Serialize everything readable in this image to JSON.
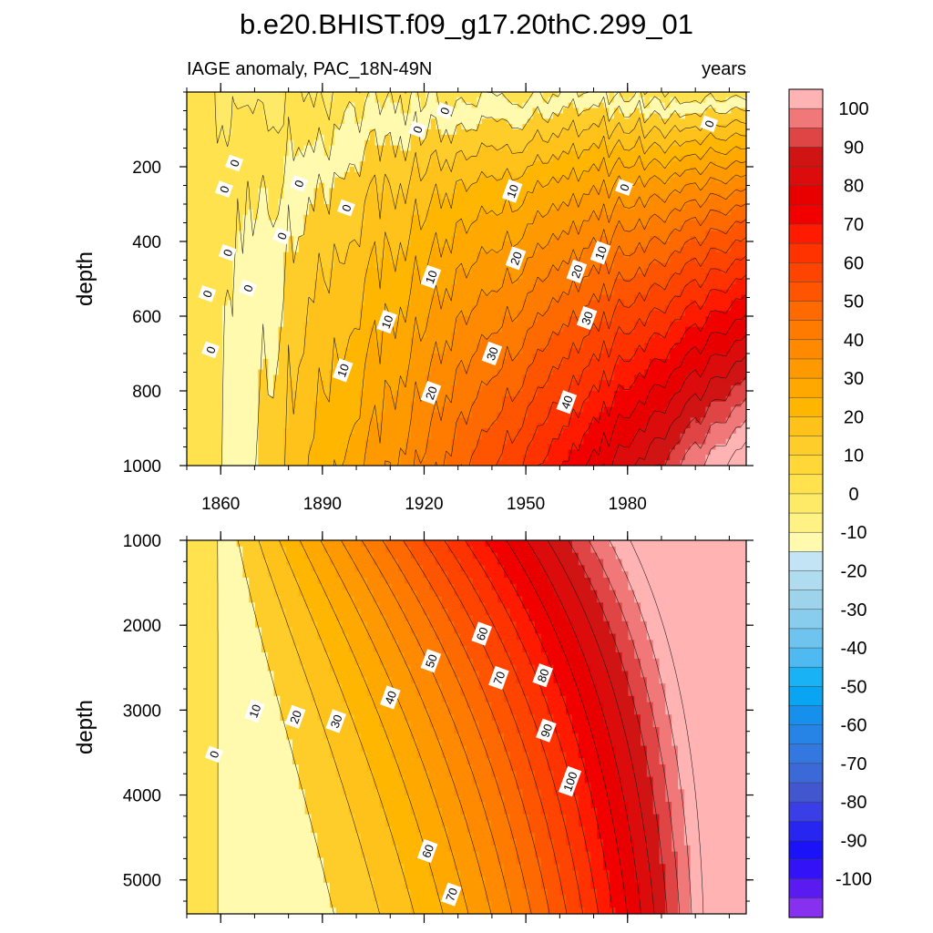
{
  "figure": {
    "title": "b.e20.BHIST.f09_g17.20thC.299_01",
    "subtitle_left": "IAGE anomaly, PAC_18N-49N",
    "subtitle_right": "years"
  },
  "chart_data": [
    {
      "type": "heatmap",
      "panel": "upper",
      "title": "IAGE anomaly, PAC_18N-49N",
      "units": "years",
      "xlabel": "",
      "ylabel": "depth",
      "xlim": [
        1850,
        2015
      ],
      "ylim": [
        1000,
        0
      ],
      "x_ticks": [
        1860,
        1890,
        1920,
        1950,
        1980
      ],
      "y_ticks": [
        200,
        400,
        600,
        800,
        1000
      ],
      "contour_levels_interval": 5,
      "contour_labels": [
        {
          "text": "0",
          "x": 1857,
          "y": 690
        },
        {
          "text": "0",
          "x": 1856,
          "y": 540
        },
        {
          "text": "0",
          "x": 1862,
          "y": 430
        },
        {
          "text": "0",
          "x": 1861,
          "y": 260
        },
        {
          "text": "0",
          "x": 1864,
          "y": 190
        },
        {
          "text": "0",
          "x": 1868,
          "y": 525
        },
        {
          "text": "0",
          "x": 1878,
          "y": 385
        },
        {
          "text": "0",
          "x": 1883,
          "y": 245
        },
        {
          "text": "0",
          "x": 1897,
          "y": 310
        },
        {
          "text": "0",
          "x": 1918,
          "y": 100
        },
        {
          "text": "0",
          "x": 1926,
          "y": 50
        },
        {
          "text": "0",
          "x": 1979,
          "y": 255
        },
        {
          "text": "0",
          "x": 2004,
          "y": 85
        },
        {
          "text": "10",
          "x": 1896,
          "y": 745
        },
        {
          "text": "10",
          "x": 1909,
          "y": 615
        },
        {
          "text": "10",
          "x": 1922,
          "y": 495
        },
        {
          "text": "10",
          "x": 1946,
          "y": 265
        },
        {
          "text": "10",
          "x": 1972,
          "y": 430
        },
        {
          "text": "20",
          "x": 1922,
          "y": 805
        },
        {
          "text": "20",
          "x": 1947,
          "y": 445
        },
        {
          "text": "20",
          "x": 1965,
          "y": 480
        },
        {
          "text": "30",
          "x": 1940,
          "y": 700
        },
        {
          "text": "30",
          "x": 1968,
          "y": 605
        },
        {
          "text": "40",
          "x": 1962,
          "y": 830
        }
      ]
    },
    {
      "type": "heatmap",
      "panel": "lower",
      "xlabel": "",
      "ylabel": "depth",
      "xlim": [
        1850,
        2015
      ],
      "ylim": [
        5400,
        1000
      ],
      "y_ticks": [
        1000,
        2000,
        3000,
        4000,
        5000
      ],
      "contour_levels_interval": 5,
      "contour_labels": [
        {
          "text": "0",
          "x": 1858,
          "y": 3520
        },
        {
          "text": "10",
          "x": 1870,
          "y": 3010
        },
        {
          "text": "20",
          "x": 1882,
          "y": 3080
        },
        {
          "text": "30",
          "x": 1894,
          "y": 3130
        },
        {
          "text": "40",
          "x": 1910,
          "y": 2850
        },
        {
          "text": "50",
          "x": 1922,
          "y": 2420
        },
        {
          "text": "60",
          "x": 1937,
          "y": 2100
        },
        {
          "text": "70",
          "x": 1942,
          "y": 2620
        },
        {
          "text": "80",
          "x": 1955,
          "y": 2590
        },
        {
          "text": "90",
          "x": 1956,
          "y": 3240
        },
        {
          "text": "100",
          "x": 1963,
          "y": 3840
        },
        {
          "text": "60",
          "x": 1921,
          "y": 4660
        },
        {
          "text": "70",
          "x": 1928,
          "y": 5170
        }
      ]
    }
  ],
  "colorbar": {
    "labels": [
      "100",
      "90",
      "80",
      "70",
      "60",
      "50",
      "40",
      "30",
      "20",
      "10",
      "0",
      "-10",
      "-20",
      "-30",
      "-40",
      "-50",
      "-60",
      "-70",
      "-80",
      "-90",
      "-100"
    ],
    "colors_top_to_bottom": [
      "#ffb3b3",
      "#f07878",
      "#e04545",
      "#d01414",
      "#dd0c0c",
      "#e80000",
      "#f20000",
      "#ff1a00",
      "#ff3300",
      "#ff4400",
      "#ff5500",
      "#ff6a00",
      "#ff7b00",
      "#ff8a00",
      "#ff9900",
      "#ffa800",
      "#ffb600",
      "#ffc21a",
      "#ffcd2a",
      "#ffd838",
      "#ffe24d",
      "#ffea68",
      "#fff285",
      "#fffaae",
      "#c2e4f4",
      "#b0dcef",
      "#9dd4eb",
      "#88cdee",
      "#6fc4ef",
      "#4fbaf2",
      "#19b2f5",
      "#0aa5f2",
      "#1690ec",
      "#2684e6",
      "#3377e0",
      "#3b6ad8",
      "#4156cf",
      "#3a3ee6",
      "#2626f0",
      "#1b12f7",
      "#3312f7",
      "#5a1bf0",
      "#8830f0"
    ]
  }
}
